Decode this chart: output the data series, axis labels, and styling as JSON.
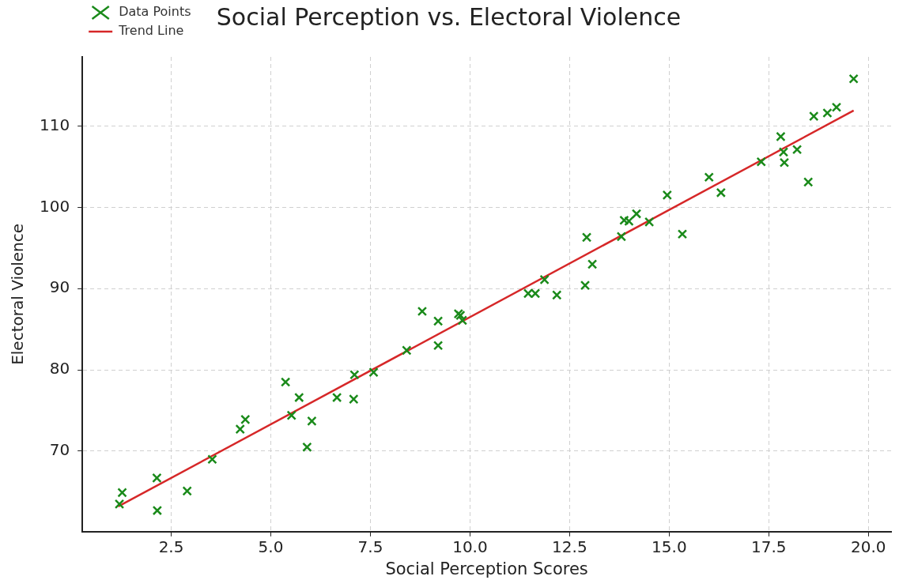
{
  "chart_data": {
    "type": "scatter",
    "title": "Social Perception vs. Electoral Violence",
    "xlabel": "Social Perception Scores",
    "ylabel": "Electoral Violence",
    "xlim": [
      0.27,
      20.57
    ],
    "ylim": [
      60.1,
      118.5
    ],
    "xticks": [
      2.5,
      {
        "value": 5,
        "label": "5.0"
      },
      7.5,
      {
        "value": 10,
        "label": "10.0"
      },
      12.5,
      {
        "value": 15,
        "label": "15.0"
      },
      17.5,
      {
        "value": 20,
        "label": "20.0"
      }
    ],
    "yticks": [
      70,
      80,
      90,
      100,
      110
    ],
    "grid": true,
    "legend": "top left",
    "series": [
      {
        "name": "Data Points",
        "type": "scatter",
        "color": "#1a8a1a",
        "marker": "cross",
        "x": [
          1.2,
          1.27,
          2.14,
          2.15,
          2.9,
          3.53,
          4.23,
          4.36,
          5.37,
          5.52,
          5.71,
          5.91,
          6.03,
          6.66,
          7.08,
          7.1,
          7.58,
          8.41,
          8.8,
          9.2,
          9.2,
          9.71,
          9.76,
          9.81,
          11.46,
          11.64,
          11.87,
          12.18,
          12.89,
          12.93,
          13.07,
          13.8,
          13.87,
          13.99,
          14.18,
          14.5,
          14.95,
          15.33,
          16.0,
          16.3,
          17.31,
          17.8,
          17.87,
          17.89,
          18.21,
          18.49,
          18.63,
          18.97,
          19.2,
          19.63
        ],
        "values": [
          63.5,
          64.9,
          66.7,
          62.7,
          65.1,
          69.0,
          72.7,
          73.9,
          78.5,
          74.4,
          76.6,
          70.5,
          73.7,
          76.6,
          76.4,
          79.4,
          79.7,
          82.4,
          87.2,
          86.0,
          83.0,
          86.9,
          86.7,
          86.1,
          89.4,
          89.4,
          91.1,
          89.2,
          90.4,
          96.3,
          93.0,
          96.4,
          98.4,
          98.3,
          99.2,
          98.2,
          101.5,
          96.7,
          103.7,
          101.8,
          105.6,
          108.7,
          106.8,
          105.5,
          107.1,
          103.1,
          111.2,
          111.6,
          112.3,
          115.8
        ]
      },
      {
        "name": "Trend Line",
        "type": "line",
        "color": "#d62728",
        "marker": "none",
        "line_style": "solid",
        "x": [
          1.17,
          19.63
        ],
        "values": [
          63.2,
          111.9
        ]
      }
    ]
  }
}
